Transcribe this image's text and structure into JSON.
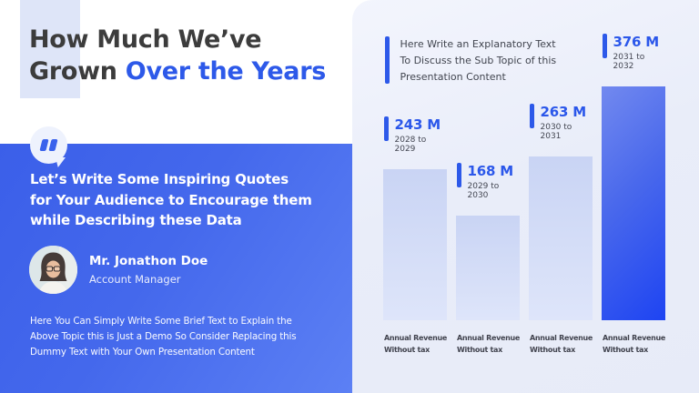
{
  "slide": {
    "title": {
      "line1": "How Much We’ve",
      "line2_prefix": "Grown ",
      "line2_highlight": "Over the Years"
    },
    "quote_section": {
      "quote_lines": [
        "Let’s Write Some Inspiring Quotes",
        "for Your Audience to Encourage them",
        "while Describing these Data"
      ],
      "person": {
        "name": "Mr. Jonathon Doe",
        "role": "Account Manager"
      },
      "body_lines": [
        "Here You Can Simply Write Some Brief Text to Explain the",
        "Above Topic this is Just a Demo So Consider Replacing this",
        "Dummy Text with Your Own Presentation Content"
      ]
    },
    "explanatory_lines": [
      "Here Write an Explanatory Text",
      "To Discuss the Sub Topic of this",
      "Presentation Content"
    ]
  },
  "chart_data": {
    "type": "bar",
    "title": "",
    "xlabel": "",
    "ylabel": "",
    "categories": [
      "2028 to 2029",
      "2029 to 2030",
      "2030 to 2031",
      "2031 to 2032"
    ],
    "values": [
      243,
      168,
      263,
      376
    ],
    "unit": "M",
    "value_labels": [
      "243 M",
      "168 M",
      "263 M",
      "376 M"
    ],
    "bar_captions": [
      "Annual Revenue",
      "Without tax"
    ],
    "ylim": [
      0,
      400
    ],
    "grid": false,
    "legend": "none",
    "highlighted_bar_index": 3
  },
  "icons": {
    "quote_icon": "double-quote-marks-in-speech-bubble",
    "avatar": "portrait-photo-woman-with-glasses"
  },
  "colors": {
    "accent_blue": "#2d59e9",
    "title_dark": "#3c3c3c",
    "quote_panel_gradient": [
      "#3b5fe9",
      "#5c80f4"
    ],
    "title_highlight_rect": "#dee5f8",
    "right_background": "#e9edf9",
    "bar_light_top": "#c9d4f4",
    "bar_light_bottom": "#dee5fa",
    "bar_highlight_top": "#7289ef",
    "bar_highlight_bottom": "#1e44f2",
    "body_text_dark": "#41454f"
  }
}
